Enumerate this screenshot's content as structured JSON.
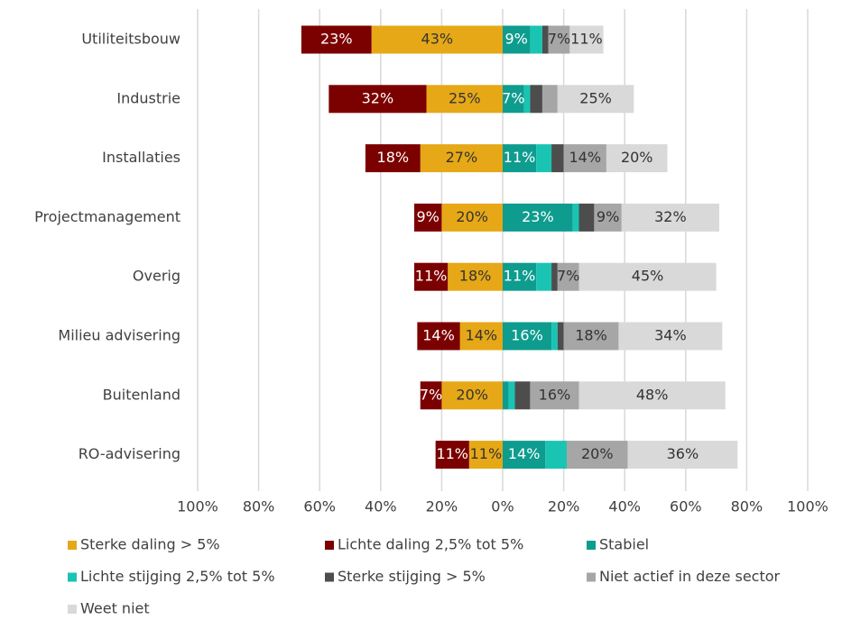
{
  "chart_data": {
    "type": "diverging_stacked_bar",
    "orientation": "horizontal",
    "categories": [
      "Utiliteitsbouw",
      "Industrie",
      "Installaties",
      "Projectmanagement",
      "Overig",
      "Milieu advisering",
      "Buitenland",
      "RO-advisering"
    ],
    "xlim": [
      -100,
      100
    ],
    "xticks": [
      {
        "value": -100,
        "label": "100%"
      },
      {
        "value": -80,
        "label": "80%"
      },
      {
        "value": -60,
        "label": "60%"
      },
      {
        "value": -40,
        "label": "40%"
      },
      {
        "value": -20,
        "label": "20%"
      },
      {
        "value": 0,
        "label": "0%"
      },
      {
        "value": 20,
        "label": "20%"
      },
      {
        "value": 40,
        "label": "40%"
      },
      {
        "value": 60,
        "label": "60%"
      },
      {
        "value": 80,
        "label": "80%"
      },
      {
        "value": 100,
        "label": "100%"
      }
    ],
    "grid": true,
    "legend": "bottom",
    "series": [
      {
        "name": "Sterke daling > 5%",
        "color": "#e6a817",
        "label_color": "#333333",
        "values": [
          -43,
          -25,
          -27,
          -20,
          -18,
          -14,
          -20,
          -11
        ],
        "value_labels": [
          "43%",
          "25%",
          "27%",
          "20%",
          "18%",
          "14%",
          "20%",
          "11%"
        ]
      },
      {
        "name": "Lichte daling 2,5% tot 5%",
        "color": "#7b0000",
        "label_color": "#ffffff",
        "values": [
          -23,
          -32,
          -18,
          -9,
          -11,
          -14,
          -7,
          -11
        ],
        "value_labels": [
          "23%",
          "32%",
          "18%",
          "9%",
          "11%",
          "14%",
          "7%",
          "11%"
        ]
      },
      {
        "name": "Stabiel",
        "color": "#0e9c8f",
        "label_color": "#ffffff",
        "values": [
          9,
          7,
          11,
          23,
          11,
          16,
          2,
          14
        ],
        "value_labels": [
          "9%",
          "7%",
          "11%",
          "23%",
          "11%",
          "16%",
          null,
          "14%"
        ]
      },
      {
        "name": "Lichte stijging 2,5% tot 5%",
        "color": "#19c4b3",
        "label_color": "#333333",
        "values": [
          4,
          2,
          5,
          2,
          5,
          2,
          2,
          7
        ],
        "value_labels": [
          null,
          null,
          null,
          null,
          null,
          null,
          null,
          null
        ]
      },
      {
        "name": "Sterke stijging > 5%",
        "color": "#4d4d4d",
        "label_color": "#ffffff",
        "values": [
          2,
          4,
          4,
          5,
          2,
          2,
          5,
          0
        ],
        "value_labels": [
          null,
          null,
          null,
          null,
          null,
          null,
          null,
          null
        ]
      },
      {
        "name": "Niet actief in deze sector",
        "color": "#a6a6a6",
        "label_color": "#333333",
        "values": [
          7,
          5,
          14,
          9,
          7,
          18,
          16,
          20
        ],
        "value_labels": [
          "7%",
          null,
          "14%",
          "9%",
          "7%",
          "18%",
          "16%",
          "20%"
        ]
      },
      {
        "name": "Weet niet",
        "color": "#d9d9d9",
        "label_color": "#333333",
        "values": [
          11,
          25,
          20,
          32,
          45,
          34,
          48,
          36
        ],
        "value_labels": [
          "11%",
          "25%",
          "20%",
          "32%",
          "45%",
          "34%",
          "48%",
          "36%"
        ]
      }
    ]
  }
}
